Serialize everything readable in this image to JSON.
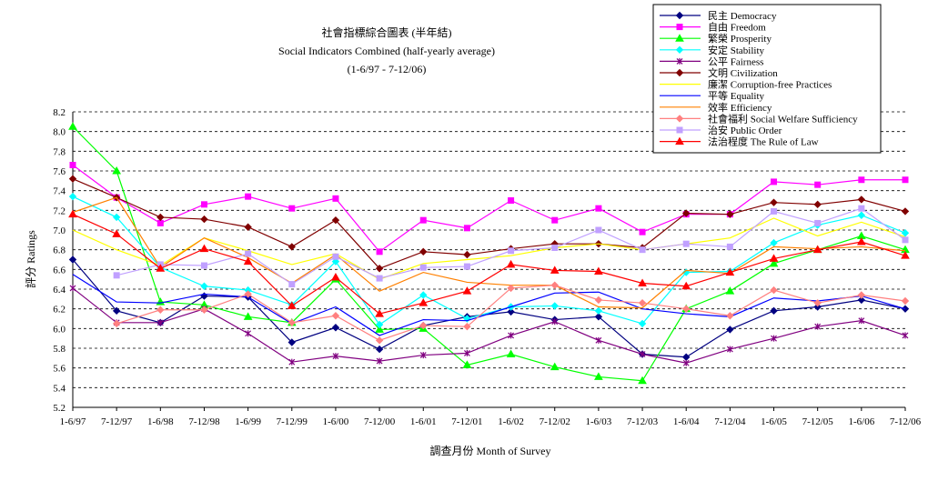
{
  "chart_data": {
    "type": "line",
    "title_lines": [
      "社會指標綜合圖表 (半年結)",
      "Social Indicators Combined (half-yearly average)",
      "(1-6/97 - 7-12/06)"
    ],
    "xlabel": "調查月份 Month of Survey",
    "ylabel": "評分 Ratings",
    "ylim": [
      5.2,
      8.2
    ],
    "yticks": [
      "5.2",
      "5.4",
      "5.6",
      "5.8",
      "6.0",
      "6.2",
      "6.4",
      "6.6",
      "6.8",
      "7.0",
      "7.2",
      "7.4",
      "7.6",
      "7.8",
      "8.0",
      "8.2"
    ],
    "grid": "horizontal dashed",
    "legend_position": "top-right",
    "categories": [
      "1-6/97",
      "7-12/97",
      "1-6/98",
      "7-12/98",
      "1-6/99",
      "7-12/99",
      "1-6/00",
      "7-12/00",
      "1-6/01",
      "7-12/01",
      "1-6/02",
      "7-12/02",
      "1-6/03",
      "7-12/03",
      "1-6/04",
      "7-12/04",
      "1-6/05",
      "7-12/05",
      "1-6/06",
      "7-12/06"
    ],
    "series": [
      {
        "name": "民主 Democracy",
        "color": "#000080",
        "marker": "diamond",
        "values": [
          6.7,
          6.18,
          6.06,
          6.33,
          6.32,
          5.86,
          6.01,
          5.79,
          6.03,
          6.12,
          6.17,
          6.09,
          6.12,
          5.74,
          5.71,
          5.99,
          6.18,
          6.22,
          6.29,
          6.2
        ]
      },
      {
        "name": "自由 Freedom",
        "color": "#ff00ff",
        "marker": "square",
        "values": [
          7.66,
          7.33,
          7.07,
          7.26,
          7.34,
          7.22,
          7.32,
          6.78,
          7.1,
          7.02,
          7.3,
          7.1,
          7.22,
          6.98,
          7.16,
          7.16,
          7.49,
          7.46,
          7.51,
          7.51
        ]
      },
      {
        "name": "繁榮 Prosperity",
        "color": "#00ff00",
        "marker": "triangle",
        "values": [
          8.05,
          7.6,
          6.27,
          6.24,
          6.12,
          6.06,
          6.5,
          5.99,
          6.0,
          5.63,
          5.74,
          5.61,
          5.51,
          5.47,
          6.2,
          6.38,
          6.66,
          6.8,
          6.94,
          6.8
        ]
      },
      {
        "name": "安定 Stability",
        "color": "#00ffff",
        "marker": "diamond",
        "values": [
          7.34,
          7.13,
          6.62,
          6.43,
          6.39,
          6.24,
          6.68,
          6.04,
          6.34,
          6.1,
          6.22,
          6.23,
          6.18,
          6.05,
          6.57,
          6.58,
          6.87,
          7.05,
          7.15,
          6.97
        ]
      },
      {
        "name": "公平 Fairness",
        "color": "#800080",
        "marker": "star",
        "values": [
          6.41,
          6.06,
          6.06,
          6.2,
          5.95,
          5.66,
          5.72,
          5.67,
          5.73,
          5.75,
          5.93,
          6.07,
          5.88,
          5.74,
          5.65,
          5.79,
          5.9,
          6.02,
          6.08,
          5.93
        ]
      },
      {
        "name": "文明 Civilization",
        "color": "#800000",
        "marker": "diamond",
        "values": [
          7.52,
          7.33,
          7.13,
          7.11,
          7.03,
          6.83,
          7.1,
          6.61,
          6.78,
          6.75,
          6.81,
          6.86,
          6.86,
          6.82,
          7.17,
          7.16,
          7.28,
          7.26,
          7.31,
          7.19
        ]
      },
      {
        "name": "廉潔 Corruption-free Practices",
        "color": "#ffff00",
        "marker": "none",
        "values": [
          7.0,
          6.8,
          6.64,
          6.92,
          6.79,
          6.65,
          6.76,
          6.5,
          6.66,
          6.7,
          6.74,
          6.82,
          6.86,
          6.8,
          6.86,
          6.92,
          7.12,
          6.94,
          7.08,
          6.93
        ]
      },
      {
        "name": "平等 Equality",
        "color": "#0000ff",
        "marker": "none",
        "values": [
          6.55,
          6.27,
          6.26,
          6.35,
          6.32,
          6.05,
          6.22,
          5.93,
          6.09,
          6.08,
          6.22,
          6.36,
          6.37,
          6.2,
          6.15,
          6.12,
          6.31,
          6.28,
          6.33,
          6.2
        ]
      },
      {
        "name": "效率 Efficiency",
        "color": "#ff8000",
        "marker": "none",
        "values": [
          7.18,
          7.33,
          6.62,
          6.92,
          6.72,
          6.46,
          6.75,
          6.38,
          6.57,
          6.47,
          6.44,
          6.44,
          6.22,
          6.21,
          6.59,
          6.56,
          6.83,
          6.81,
          6.83,
          6.79
        ]
      },
      {
        "name": "社會福利 Social Welfare Sufficiency",
        "color": "#ff8080",
        "marker": "diamond",
        "values": [
          null,
          6.05,
          6.19,
          6.19,
          6.35,
          6.06,
          6.13,
          5.88,
          6.03,
          6.02,
          6.41,
          6.44,
          6.29,
          6.26,
          6.2,
          6.13,
          6.39,
          6.26,
          6.34,
          6.28
        ]
      },
      {
        "name": "治安 Public Order",
        "color": "#c0a0ff",
        "marker": "square",
        "values": [
          null,
          6.54,
          6.65,
          6.64,
          6.76,
          6.45,
          6.73,
          6.51,
          6.62,
          6.63,
          6.79,
          6.82,
          7.0,
          6.8,
          6.86,
          6.83,
          7.19,
          7.07,
          7.22,
          6.9
        ]
      },
      {
        "name": "法治程度 The Rule of Law",
        "color": "#ff0000",
        "marker": "triangle",
        "values": [
          7.16,
          6.96,
          6.61,
          6.81,
          6.68,
          6.23,
          6.52,
          6.15,
          6.26,
          6.38,
          6.65,
          6.59,
          6.58,
          6.46,
          6.43,
          6.57,
          6.71,
          6.8,
          6.88,
          6.74
        ]
      }
    ]
  }
}
